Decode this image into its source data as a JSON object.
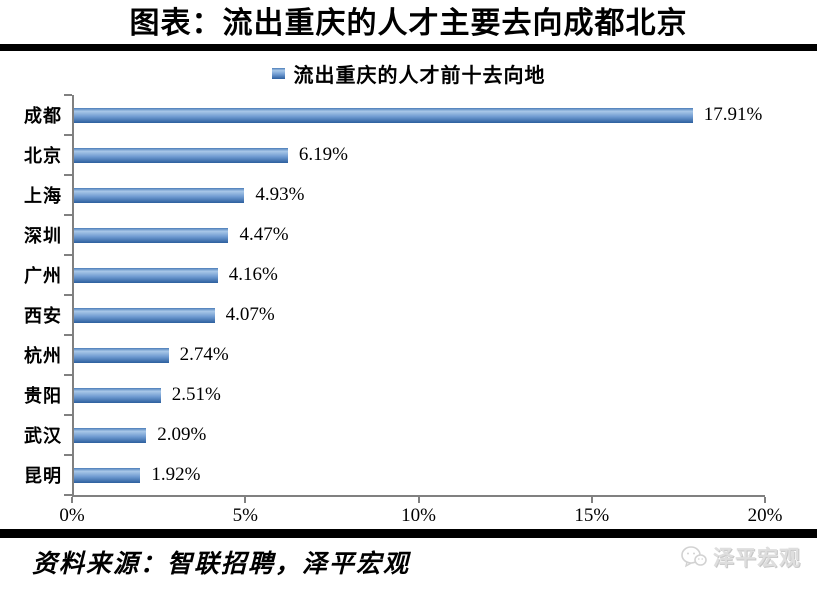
{
  "title": "图表：流出重庆的人才主要去向成都北京",
  "legend": {
    "label": "流出重庆的人才前十去向地"
  },
  "source": {
    "text": "资料来源：智联招聘，泽平宏观"
  },
  "watermark": {
    "label": "泽平宏观"
  },
  "colors": {
    "bar_top": "#4a7cb8",
    "bar_light": "#a9c8e8",
    "bar_mid": "#6f9bd1",
    "bar_dark": "#2c5f9e",
    "axis": "#808080",
    "divider": "#000000",
    "watermark_text": "#dedede"
  },
  "chart_data": {
    "type": "bar",
    "orientation": "horizontal",
    "title": "流出重庆的人才前十去向地",
    "categories": [
      "成都",
      "北京",
      "上海",
      "深圳",
      "广州",
      "西安",
      "杭州",
      "贵阳",
      "武汉",
      "昆明"
    ],
    "values": [
      17.91,
      6.19,
      4.93,
      4.47,
      4.16,
      4.07,
      2.74,
      2.51,
      2.09,
      1.92
    ],
    "value_labels": [
      "17.91%",
      "6.19%",
      "4.93%",
      "4.47%",
      "4.16%",
      "4.07%",
      "2.74%",
      "2.51%",
      "2.09%",
      "1.92%"
    ],
    "x_ticks": [
      "0%",
      "5%",
      "10%",
      "15%",
      "20%"
    ],
    "xlim": [
      0,
      20
    ],
    "grid": false,
    "legend_position": "top"
  }
}
